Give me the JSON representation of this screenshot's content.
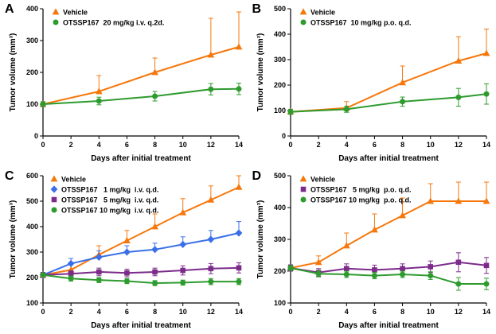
{
  "figure": {
    "background": "#ffffff"
  },
  "colors": {
    "vehicle_orange": "#F6770B",
    "treatment_green": "#2E9B2E",
    "treatment_blue": "#3A6FE8",
    "treatment_purple": "#7C2B8B",
    "axis": "#000000"
  },
  "chart_data": [
    {
      "panel": "A",
      "type": "line",
      "xlabel": "Days after initial treatment",
      "ylabel": "Tumor volume (mm³)",
      "xlim": [
        0,
        14
      ],
      "ylim": [
        0,
        400
      ],
      "xticks": [
        0,
        2,
        4,
        6,
        8,
        10,
        12,
        14
      ],
      "yticks": [
        0,
        100,
        200,
        300,
        400
      ],
      "legend_position": "top-left",
      "legend_dx": 16,
      "x": [
        0,
        4,
        8,
        12,
        14
      ],
      "series": [
        {
          "name": "Vehicle",
          "marker": "triangle",
          "color": "#F6770B",
          "values": [
            100,
            140,
            200,
            255,
            280
          ],
          "err": [
            8,
            50,
            45,
            115,
            110
          ],
          "err_both": false
        },
        {
          "name": "OTSSP167  20 mg/kg i.v. q.2d.",
          "marker": "circle",
          "color": "#2E9B2E",
          "values": [
            100,
            110,
            125,
            147,
            148
          ],
          "err": [
            8,
            12,
            15,
            18,
            18
          ],
          "err_both": true
        }
      ]
    },
    {
      "panel": "B",
      "type": "line",
      "xlabel": "Days after initial treatment",
      "ylabel": "Tumor volume (mm³)",
      "xlim": [
        0,
        14
      ],
      "ylim": [
        0,
        500
      ],
      "xticks": [
        0,
        2,
        4,
        6,
        8,
        10,
        12,
        14
      ],
      "yticks": [
        0,
        100,
        200,
        300,
        400,
        500
      ],
      "legend_position": "top-left",
      "legend_dx": 16,
      "x": [
        0,
        4,
        8,
        12,
        14
      ],
      "series": [
        {
          "name": "Vehicle",
          "marker": "triangle",
          "color": "#F6770B",
          "values": [
            95,
            110,
            210,
            295,
            325
          ],
          "err": [
            10,
            25,
            65,
            95,
            95
          ],
          "err_both": false
        },
        {
          "name": "OTSSP167  10 mg/kg p.o. q.d.",
          "marker": "circle",
          "color": "#2E9B2E",
          "values": [
            95,
            105,
            135,
            152,
            165
          ],
          "err": [
            10,
            12,
            18,
            35,
            40
          ],
          "err_both": true
        }
      ]
    },
    {
      "panel": "C",
      "type": "line",
      "xlabel": "Days after initial treatment",
      "ylabel": "Tumor volume (mm³)",
      "xlim": [
        0,
        14
      ],
      "ylim": [
        100,
        600
      ],
      "xticks": [
        0,
        2,
        4,
        6,
        8,
        10,
        12,
        14
      ],
      "yticks": [
        100,
        200,
        300,
        400,
        500,
        600
      ],
      "legend_position": "top-left",
      "legend_dx": 14,
      "x": [
        0,
        2,
        4,
        6,
        8,
        10,
        12,
        14
      ],
      "series": [
        {
          "name": "Vehicle",
          "marker": "triangle",
          "color": "#F6770B",
          "values": [
            210,
            230,
            290,
            345,
            400,
            455,
            505,
            555
          ],
          "err": [
            10,
            25,
            35,
            40,
            50,
            55,
            55,
            45
          ],
          "err_both": false
        },
        {
          "name": "OTSSP167   1 mg/kg  i.v. q.d.",
          "marker": "diamond",
          "color": "#3A6FE8",
          "values": [
            210,
            255,
            280,
            300,
            310,
            330,
            350,
            375
          ],
          "err": [
            10,
            20,
            25,
            25,
            25,
            30,
            35,
            45
          ],
          "err_both": false
        },
        {
          "name": "OTSSP167   5 mg/kg  i.v. q.d.",
          "marker": "square",
          "color": "#7C2B8B",
          "values": [
            210,
            215,
            222,
            218,
            222,
            228,
            235,
            238
          ],
          "err": [
            10,
            12,
            15,
            15,
            15,
            18,
            20,
            20
          ],
          "err_both": true
        },
        {
          "name": "OTSSP167 10 mg/kg  i.v. q.d.",
          "marker": "circle",
          "color": "#2E9B2E",
          "values": [
            210,
            196,
            190,
            186,
            178,
            180,
            184,
            184
          ],
          "err": [
            8,
            10,
            10,
            10,
            10,
            10,
            12,
            12
          ],
          "err_both": true
        }
      ]
    },
    {
      "panel": "D",
      "type": "line",
      "xlabel": "Days after initial treatment",
      "ylabel": "Tumor volume (mm³)",
      "xlim": [
        0,
        14
      ],
      "ylim": [
        100,
        500
      ],
      "xticks": [
        0,
        2,
        4,
        6,
        8,
        10,
        12,
        14
      ],
      "yticks": [
        100,
        200,
        300,
        400,
        500
      ],
      "legend_position": "top-left",
      "legend_dx": 16,
      "x": [
        0,
        2,
        4,
        6,
        8,
        10,
        12,
        14
      ],
      "series": [
        {
          "name": "Vehicle",
          "marker": "triangle",
          "color": "#F6770B",
          "values": [
            210,
            228,
            280,
            330,
            375,
            420,
            420,
            420
          ],
          "err": [
            10,
            20,
            40,
            50,
            55,
            55,
            60,
            60
          ],
          "err_both": false
        },
        {
          "name": "OTSSP167   5 mg/kg  p.o. q.d.",
          "marker": "square",
          "color": "#7C2B8B",
          "values": [
            210,
            196,
            208,
            204,
            208,
            214,
            228,
            218
          ],
          "err": [
            10,
            12,
            15,
            15,
            15,
            18,
            30,
            25
          ],
          "err_both": true
        },
        {
          "name": "OTSSP167 10 mg/kg  p.o. q.d.",
          "marker": "circle",
          "color": "#2E9B2E",
          "values": [
            210,
            192,
            190,
            186,
            190,
            186,
            160,
            160
          ],
          "err": [
            8,
            10,
            10,
            10,
            10,
            12,
            20,
            18
          ],
          "err_both": true
        }
      ]
    }
  ]
}
